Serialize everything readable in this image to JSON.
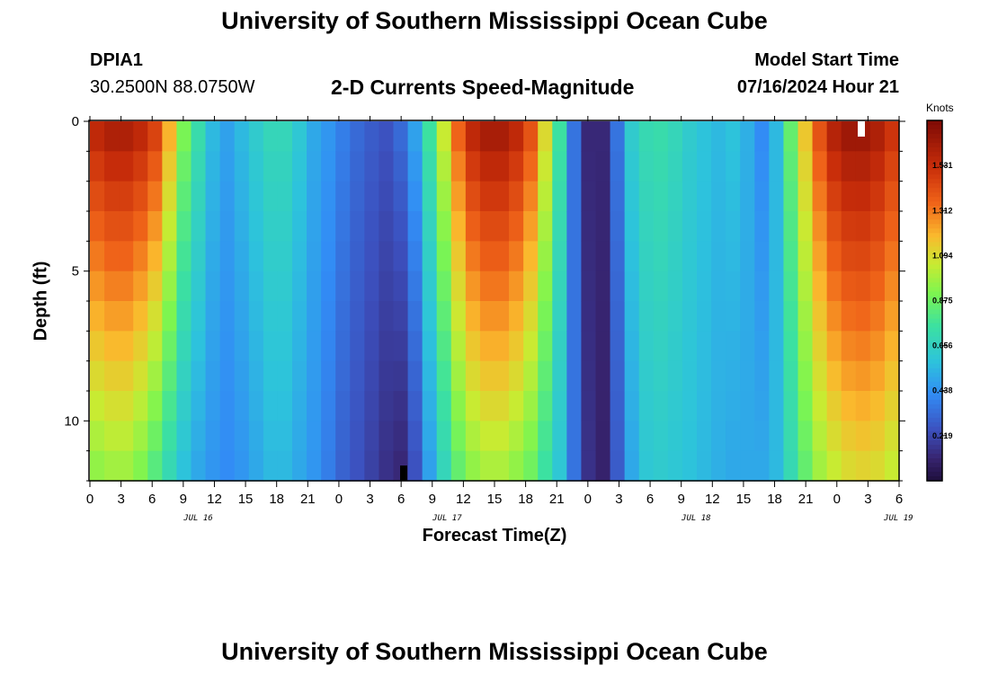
{
  "title": "University of Southern Mississippi Ocean Cube",
  "station": {
    "id": "DPIA1",
    "coords": "30.2500N  88.0750W"
  },
  "subtitle": "2-D Currents Speed-Magnitude",
  "model": {
    "label": "Model Start Time",
    "value": "07/16/2024 Hour 21"
  },
  "footer_title": "University of Southern Mississippi Ocean Cube",
  "chart_data": {
    "type": "heatmap",
    "xlabel": "Forecast Time(Z)",
    "ylabel": "Depth (ft)",
    "x_tick_labels": [
      "0",
      "3",
      "6",
      "9",
      "12",
      "15",
      "18",
      "21",
      "0",
      "3",
      "6",
      "9",
      "12",
      "15",
      "18",
      "21",
      "0",
      "3",
      "6",
      "9",
      "12",
      "15",
      "18",
      "21",
      "0",
      "3",
      "6"
    ],
    "day_labels": [
      "JUL 16",
      "JUL 17",
      "JUL 18",
      "JUL 19"
    ],
    "y_ticks": [
      0,
      5,
      10
    ],
    "ylim": [
      0,
      12
    ],
    "depth_levels": 12,
    "x_range_hours": [
      0,
      78
    ],
    "colorbar": {
      "title": "Knots",
      "ticks": [
        "0.219",
        "0.438",
        "0.656",
        "0.875",
        "1.094",
        "1.312",
        "1.531"
      ],
      "range": [
        0,
        1.75
      ]
    },
    "surface_speed_knots": [
      1.55,
      1.6,
      1.6,
      1.55,
      1.45,
      1.2,
      0.9,
      0.72,
      0.55,
      0.48,
      0.55,
      0.62,
      0.68,
      0.68,
      0.6,
      0.5,
      0.45,
      0.38,
      0.32,
      0.28,
      0.25,
      0.32,
      0.48,
      0.75,
      1.05,
      1.35,
      1.55,
      1.62,
      1.62,
      1.55,
      1.4,
      1.1,
      0.75,
      0.35,
      0.12,
      0.12,
      0.35,
      0.62,
      0.7,
      0.72,
      0.68,
      0.62,
      0.58,
      0.55,
      0.58,
      0.52,
      0.42,
      0.55,
      0.85,
      1.15,
      1.4,
      1.58,
      1.65,
      1.65,
      1.6,
      1.5
    ],
    "bottom_speed_knots": [
      0.95,
      0.98,
      0.98,
      0.92,
      0.82,
      0.7,
      0.58,
      0.5,
      0.45,
      0.42,
      0.45,
      0.5,
      0.55,
      0.55,
      0.5,
      0.45,
      0.38,
      0.3,
      0.25,
      0.2,
      0.15,
      0.12,
      0.25,
      0.48,
      0.68,
      0.85,
      0.95,
      1.0,
      1.0,
      0.95,
      0.88,
      0.75,
      0.6,
      0.35,
      0.15,
      0.1,
      0.28,
      0.5,
      0.6,
      0.62,
      0.6,
      0.58,
      0.55,
      0.52,
      0.5,
      0.5,
      0.5,
      0.55,
      0.7,
      0.85,
      0.98,
      1.05,
      1.1,
      1.12,
      1.1,
      1.05
    ]
  }
}
